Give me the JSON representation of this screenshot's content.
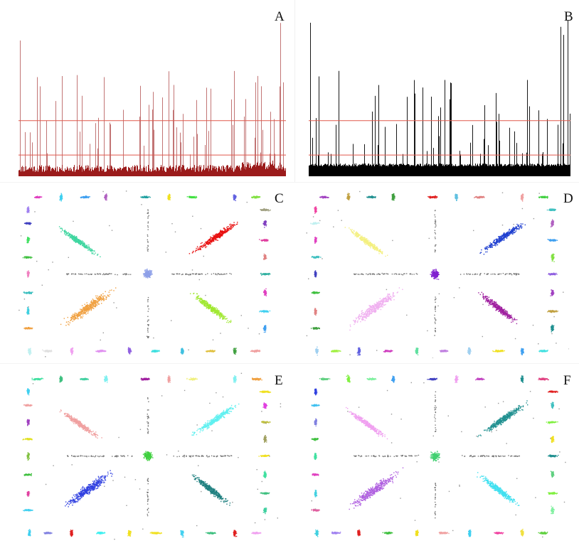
{
  "figure": {
    "panels": [
      {
        "id": "A",
        "label": "A",
        "kind": "histogram",
        "bar_color": "#9b1b1b",
        "line_color": "#e0584c"
      },
      {
        "id": "B",
        "label": "B",
        "kind": "histogram",
        "bar_color": "#000000",
        "line_color": "#e0584c"
      },
      {
        "id": "C",
        "label": "C",
        "kind": "scatter"
      },
      {
        "id": "D",
        "label": "D",
        "kind": "scatter"
      },
      {
        "id": "E",
        "label": "E",
        "kind": "scatter"
      },
      {
        "id": "F",
        "label": "F",
        "kind": "scatter"
      }
    ],
    "scatter_palettes": {
      "C": {
        "center": "#8ea0e8",
        "diag_tl": "#3fd6a0",
        "diag_tr": "#e81010",
        "diag_bl": "#f0a040",
        "diag_br": "#a0e830",
        "clusters": [
          "#e040c0",
          "#40d0f0",
          "#40a0f0",
          "#b060c0",
          "#20a0a0",
          "#f0e020",
          "#40e040",
          "#6060e0",
          "#80e040",
          "#c0f0f0",
          "#e0e0e0",
          "#f0a0f0",
          "#e090f0",
          "#9060e0",
          "#40e0e0",
          "#40c0e0",
          "#e0c040",
          "#40a040",
          "#f0a0a0",
          "#a080f0",
          "#4040c0",
          "#40e060",
          "#40c040",
          "#f080c0",
          "#40c0c0",
          "#40d0e0",
          "#f0a040",
          "#a0a080",
          "#8040c0",
          "#e040a0",
          "#e08080",
          "#30b0a0"
        ]
      },
      "D": {
        "center": "#8020d0",
        "diag_tl": "#f4f080",
        "diag_tr": "#2040d0",
        "diag_bl": "#f0b0f0",
        "diag_br": "#a020a0",
        "clusters": [
          "#a040c0",
          "#c0a040",
          "#209090",
          "#40a040",
          "#e02020",
          "#60c0e0",
          "#e08080",
          "#f0a0a0",
          "#40d040",
          "#a0d0f0",
          "#a0f040",
          "#6060e0",
          "#d040c0",
          "#60e0a0",
          "#c080e0",
          "#a0d0f0",
          "#f0e020",
          "#40a0f0",
          "#40e0e0",
          "#f040a0",
          "#c0f0f0",
          "#e040c0",
          "#40c0c0",
          "#4040c0",
          "#40c040",
          "#e08080",
          "#40a040",
          "#40c0c0",
          "#b060c0",
          "#40a0f0",
          "#80e040",
          "#9060e0"
        ]
      },
      "E": {
        "center": "#40d040",
        "diag_tl": "#f0a0a0",
        "diag_tr": "#60f0f0",
        "diag_bl": "#3040e0",
        "diag_br": "#208080",
        "clusters": [
          "#40e0a0",
          "#40c080",
          "#40d0a0",
          "#80f0f0",
          "#a020a0",
          "#f0a0a0",
          "#f0f080",
          "#80f0f0",
          "#f0a040",
          "#40d0f0",
          "#8080e0",
          "#e02020",
          "#40f0f0",
          "#f0e020",
          "#f0e020",
          "#40d0f0",
          "#40c080",
          "#e02020",
          "#f0a0f0",
          "#40d0f0",
          "#f0a0a0",
          "#a040c0",
          "#e0e020",
          "#80c040",
          "#40c040",
          "#e040a0",
          "#40d0f0",
          "#f0e020",
          "#e040e0",
          "#c0c040",
          "#a0a060",
          "#f0e020"
        ]
      },
      "F": {
        "center": "#40d070",
        "diag_tl": "#f0a0f0",
        "diag_tr": "#209090",
        "diag_bl": "#b060e0",
        "diag_br": "#40e0f0",
        "clusters": [
          "#60d080",
          "#80f040",
          "#80f0a0",
          "#40a0f0",
          "#4040c0",
          "#f0a0f0",
          "#c040c0",
          "#209090",
          "#e04080",
          "#40d0e0",
          "#a080f0",
          "#e02020",
          "#40c040",
          "#f0e020",
          "#f0a0a0",
          "#40d0f0",
          "#f040a0",
          "#f0e040",
          "#60d040",
          "#3040e0",
          "#40c0f0",
          "#8080e0",
          "#40c040",
          "#40e0a0",
          "#e040c0",
          "#40d0e0",
          "#e060a0",
          "#e02020",
          "#40c0c0",
          "#80f040",
          "#f0e020",
          "#209090"
        ]
      }
    }
  }
}
